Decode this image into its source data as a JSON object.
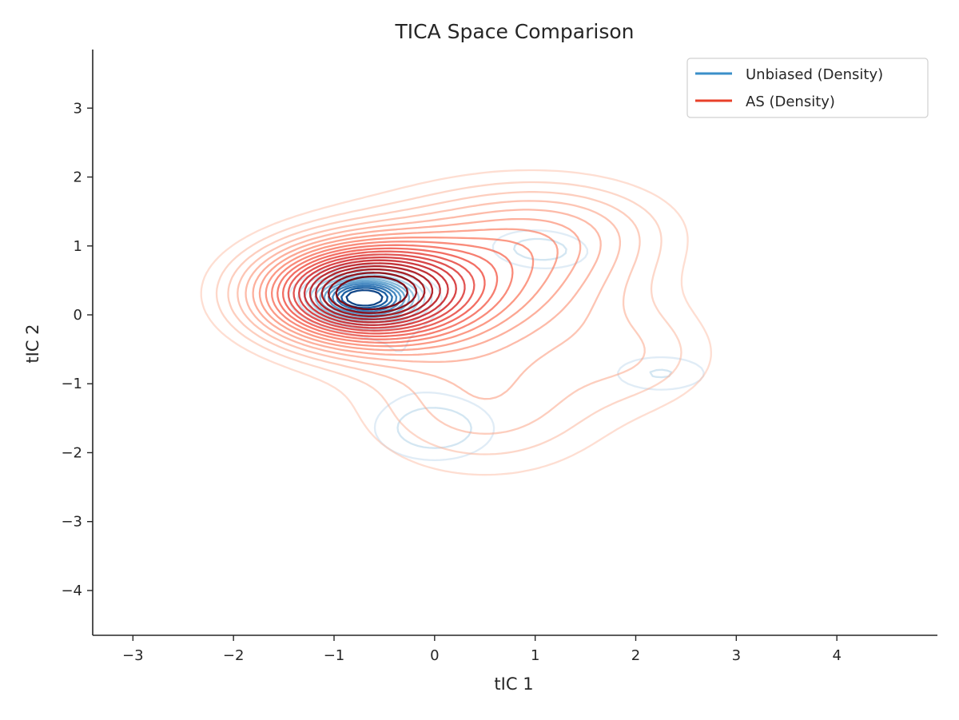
{
  "chart_data": {
    "type": "contour",
    "title": "TICA Space Comparison",
    "xlabel": "tIC 1",
    "ylabel": "tIC 2",
    "xlim": [
      -3.4,
      5.0
    ],
    "ylim": [
      -4.65,
      3.85
    ],
    "xticks": [
      -3,
      -2,
      -1,
      0,
      1,
      2,
      3,
      4
    ],
    "yticks": [
      -4,
      -3,
      -2,
      -1,
      0,
      1,
      2,
      3
    ],
    "xtick_labels": [
      "−3",
      "−2",
      "−1",
      "0",
      "1",
      "2",
      "3",
      "4"
    ],
    "ytick_labels": [
      "−4",
      "−3",
      "−2",
      "−1",
      "0",
      "1",
      "2",
      "3"
    ],
    "grid": false,
    "legend_position": "top-right",
    "series": [
      {
        "name": "Unbiased (Density)",
        "color": "#3a8fc9",
        "colormap": "Blues",
        "levels": 12,
        "components": [
          {
            "center": [
              -0.7,
              0.25
            ],
            "sigma": [
              0.35,
              0.22
            ],
            "weight": 1.0,
            "rot": 0
          },
          {
            "center": [
              1.05,
              0.95
            ],
            "sigma": [
              0.38,
              0.22
            ],
            "weight": 0.22,
            "rot": -0.1
          },
          {
            "center": [
              2.25,
              -0.85
            ],
            "sigma": [
              0.4,
              0.22
            ],
            "weight": 0.18,
            "rot": 0
          },
          {
            "center": [
              0.0,
              -1.65
            ],
            "sigma": [
              0.45,
              0.35
            ],
            "weight": 0.24,
            "rot": 0
          },
          {
            "center": [
              -0.35,
              -0.5
            ],
            "sigma": [
              0.45,
              0.4
            ],
            "weight": 0.1,
            "rot": 0
          }
        ]
      },
      {
        "name": "AS (Density)",
        "color": "#e8402a",
        "colormap": "Reds",
        "levels": 20,
        "components": [
          {
            "center": [
              -0.75,
              0.3
            ],
            "sigma": [
              0.7,
              0.5
            ],
            "weight": 1.0,
            "rot": 0
          },
          {
            "center": [
              0.5,
              0.6
            ],
            "sigma": [
              1.0,
              0.75
            ],
            "weight": 0.38,
            "rot": 0
          },
          {
            "center": [
              0.5,
              -1.3
            ],
            "sigma": [
              0.9,
              0.75
            ],
            "weight": 0.22,
            "rot": 0
          },
          {
            "center": [
              2.1,
              -0.6
            ],
            "sigma": [
              0.6,
              0.55
            ],
            "weight": 0.13,
            "rot": 0
          },
          {
            "center": [
              1.3,
              1.3
            ],
            "sigma": [
              0.8,
              0.5
            ],
            "weight": 0.16,
            "rot": 0
          }
        ]
      }
    ]
  }
}
